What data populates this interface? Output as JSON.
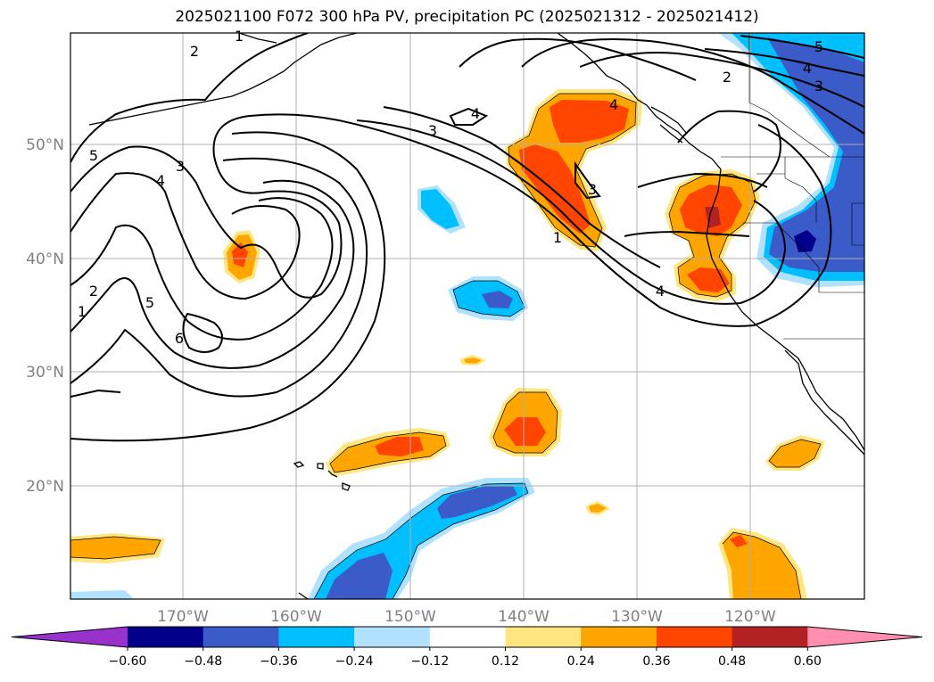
{
  "title": "2025021100 F072 300 hPa PV, precipitation PC (2025021312 - 2025021412)",
  "map": {
    "lat_labels": [
      "50°N",
      "40°N",
      "30°N",
      "20°N"
    ],
    "lon_labels": [
      "170°W",
      "160°W",
      "150°W",
      "140°W",
      "130°W",
      "120°W"
    ],
    "pv_contour_labels": [
      "1",
      "2",
      "5",
      "4",
      "3",
      "4",
      "3",
      "4",
      "3",
      "1",
      "4",
      "5",
      "4",
      "3",
      "2",
      "2",
      "1",
      "5",
      "6"
    ]
  },
  "colorbar": {
    "levels": [
      "−0.60",
      "−0.48",
      "−0.36",
      "−0.24",
      "−0.12",
      "0.12",
      "0.24",
      "0.36",
      "0.48",
      "0.60"
    ],
    "colors": [
      "#9932CC",
      "#00008B",
      "#3A5BC8",
      "#00BFFF",
      "#B0E2FF",
      "#FFFFFF",
      "#FFE680",
      "#FFA500",
      "#FF4500",
      "#B22222",
      "#FF8FB0"
    ]
  },
  "colors": {
    "neg_light": "#B0E2FF",
    "neg_mid": "#00BFFF",
    "neg_strong": "#3A5BC8",
    "neg_extreme": "#00008B",
    "pos_light": "#FFE680",
    "pos_mid": "#FFA500",
    "pos_strong": "#FF4500",
    "pos_extreme": "#B22222"
  }
}
